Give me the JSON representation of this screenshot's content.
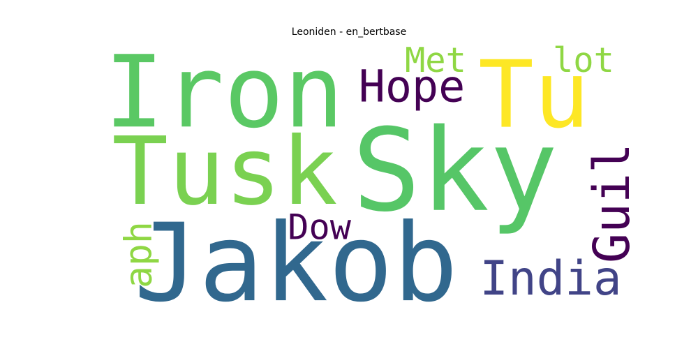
{
  "title": "Leoniden - en_bertbase",
  "words": [
    {
      "text": "Iron",
      "color": "#5ac864",
      "orientation": "horizontal"
    },
    {
      "text": "Tu",
      "color": "#fde725",
      "orientation": "horizontal"
    },
    {
      "text": "Met",
      "color": "#8fd744",
      "orientation": "horizontal"
    },
    {
      "text": "lot",
      "color": "#8fd744",
      "orientation": "horizontal"
    },
    {
      "text": "Hope",
      "color": "#440154",
      "orientation": "horizontal"
    },
    {
      "text": "Tusk",
      "color": "#7ad151",
      "orientation": "horizontal"
    },
    {
      "text": "Sky",
      "color": "#56c667",
      "orientation": "horizontal"
    },
    {
      "text": "Guil",
      "color": "#440154",
      "orientation": "vertical"
    },
    {
      "text": "Dow",
      "color": "#440154",
      "orientation": "horizontal"
    },
    {
      "text": "aph",
      "color": "#8fd744",
      "orientation": "vertical"
    },
    {
      "text": "Jakob",
      "color": "#31688e",
      "orientation": "horizontal"
    },
    {
      "text": "India",
      "color": "#414487",
      "orientation": "horizontal"
    }
  ]
}
